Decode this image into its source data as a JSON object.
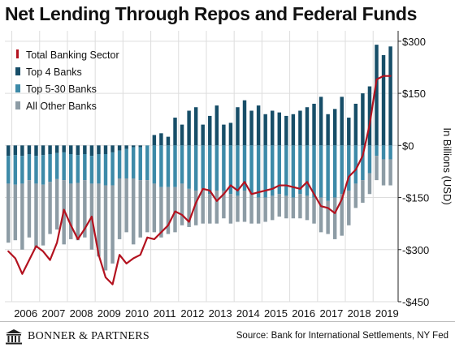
{
  "header": {
    "title": "Net Lending Through Repos and Federal Funds"
  },
  "footer": {
    "brand": "BONNER & PARTNERS",
    "source": "Source: Bank for International Settlements, NY Fed"
  },
  "colors": {
    "top4": "#174e68",
    "top5_30": "#3d8aa8",
    "other": "#8d9ca5",
    "total": "#b3121f",
    "grid": "#dddddd"
  },
  "chart_data": {
    "type": "bar",
    "stacked": true,
    "ylabel": "In Billions (USD)",
    "ylim": [
      -450,
      330
    ],
    "yticks": [
      300,
      150,
      0,
      -150,
      -300,
      -450
    ],
    "ytick_labels": [
      "$300",
      "$150",
      "$0",
      "-$150",
      "-$300",
      "-$450"
    ],
    "xlim": [
      2005.75,
      2019.9
    ],
    "year_labels": [
      "2006",
      "2007",
      "2008",
      "2009",
      "2010",
      "2011",
      "2012",
      "2013",
      "2014",
      "2015",
      "2016",
      "2017",
      "2018",
      "2019"
    ],
    "grid": true,
    "legend_position": "top-left",
    "legend": [
      {
        "label": "Total Banking Sector",
        "kind": "line",
        "color_key": "total"
      },
      {
        "label": "Top 4 Banks",
        "kind": "bar",
        "color_key": "top4"
      },
      {
        "label": "Top 5-30 Banks",
        "kind": "bar",
        "color_key": "top5_30"
      },
      {
        "label": "All Other Banks",
        "kind": "bar",
        "color_key": "other"
      }
    ],
    "quarters": [
      "2005Q4",
      "2006Q1",
      "2006Q2",
      "2006Q3",
      "2006Q4",
      "2007Q1",
      "2007Q2",
      "2007Q3",
      "2007Q4",
      "2008Q1",
      "2008Q2",
      "2008Q3",
      "2008Q4",
      "2009Q1",
      "2009Q2",
      "2009Q3",
      "2009Q4",
      "2010Q1",
      "2010Q2",
      "2010Q3",
      "2010Q4",
      "2011Q1",
      "2011Q2",
      "2011Q3",
      "2011Q4",
      "2012Q1",
      "2012Q2",
      "2012Q3",
      "2012Q4",
      "2013Q1",
      "2013Q2",
      "2013Q3",
      "2013Q4",
      "2014Q1",
      "2014Q2",
      "2014Q3",
      "2014Q4",
      "2015Q1",
      "2015Q2",
      "2015Q3",
      "2015Q4",
      "2016Q1",
      "2016Q2",
      "2016Q3",
      "2016Q4",
      "2017Q1",
      "2017Q2",
      "2017Q3",
      "2017Q4",
      "2018Q1",
      "2018Q2",
      "2018Q3",
      "2018Q4",
      "2019Q1",
      "2019Q2",
      "2019Q3"
    ],
    "x": [
      2005.875,
      2006.125,
      2006.375,
      2006.625,
      2006.875,
      2007.125,
      2007.375,
      2007.625,
      2007.875,
      2008.125,
      2008.375,
      2008.625,
      2008.875,
      2009.125,
      2009.375,
      2009.625,
      2009.875,
      2010.125,
      2010.375,
      2010.625,
      2010.875,
      2011.125,
      2011.375,
      2011.625,
      2011.875,
      2012.125,
      2012.375,
      2012.625,
      2012.875,
      2013.125,
      2013.375,
      2013.625,
      2013.875,
      2014.125,
      2014.375,
      2014.625,
      2014.875,
      2015.125,
      2015.375,
      2015.625,
      2015.875,
      2016.125,
      2016.375,
      2016.625,
      2016.875,
      2017.125,
      2017.375,
      2017.625,
      2017.875,
      2018.125,
      2018.375,
      2018.625,
      2018.875,
      2019.125,
      2019.375,
      2019.625
    ],
    "series": [
      {
        "name": "Top 4 Banks",
        "key": "top4",
        "values": [
          -30,
          -28,
          -30,
          -25,
          -30,
          -28,
          -25,
          -22,
          -20,
          -25,
          -28,
          -25,
          -30,
          -25,
          -25,
          -20,
          -15,
          -10,
          -5,
          -5,
          0,
          30,
          35,
          25,
          80,
          60,
          100,
          110,
          60,
          85,
          115,
          60,
          65,
          110,
          130,
          100,
          115,
          90,
          100,
          95,
          85,
          90,
          100,
          110,
          120,
          140,
          90,
          105,
          140,
          80,
          120,
          150,
          170,
          290,
          260,
          285
        ]
      },
      {
        "name": "Top 5-30 Banks",
        "key": "top5_30",
        "values": [
          -80,
          -85,
          -80,
          -75,
          -80,
          -85,
          -80,
          -75,
          -80,
          -85,
          -80,
          -75,
          -80,
          -85,
          -90,
          -95,
          -80,
          -85,
          -90,
          -95,
          -100,
          -110,
          -120,
          -120,
          -120,
          -110,
          -125,
          -130,
          -125,
          -140,
          -130,
          -130,
          -140,
          -145,
          -130,
          -140,
          -150,
          -150,
          -145,
          -140,
          -145,
          -150,
          -140,
          -145,
          -150,
          -150,
          -160,
          -150,
          -140,
          -130,
          -110,
          -100,
          -80,
          -30,
          -40,
          -40
        ]
      },
      {
        "name": "All Other Banks",
        "key": "other",
        "values": [
          -170,
          -160,
          -190,
          -165,
          -185,
          -175,
          -150,
          -145,
          -185,
          -160,
          -165,
          -165,
          -190,
          -210,
          -245,
          -225,
          -175,
          -155,
          -190,
          -165,
          -150,
          -140,
          -145,
          -135,
          -130,
          -120,
          -110,
          -100,
          -100,
          -85,
          -95,
          -80,
          -85,
          -75,
          -90,
          -85,
          -75,
          -70,
          -70,
          -65,
          -65,
          -60,
          -70,
          -70,
          -75,
          -100,
          -95,
          -120,
          -120,
          -100,
          -70,
          -65,
          -60,
          -70,
          -75,
          -75
        ]
      },
      {
        "name": "Total Banking Sector",
        "key": "total",
        "type": "line",
        "values": [
          -305,
          -325,
          -370,
          -330,
          -290,
          -305,
          -330,
          -280,
          -185,
          -230,
          -270,
          -240,
          -205,
          -315,
          -380,
          -400,
          -315,
          -340,
          -325,
          -315,
          -265,
          -270,
          -250,
          -230,
          -190,
          -200,
          -220,
          -165,
          -125,
          -130,
          -160,
          -140,
          -115,
          -130,
          -105,
          -140,
          -135,
          -130,
          -125,
          -115,
          -115,
          -120,
          -125,
          -105,
          -140,
          -175,
          -180,
          -195,
          -155,
          -90,
          -70,
          -30,
          60,
          190,
          200,
          200
        ]
      }
    ]
  }
}
